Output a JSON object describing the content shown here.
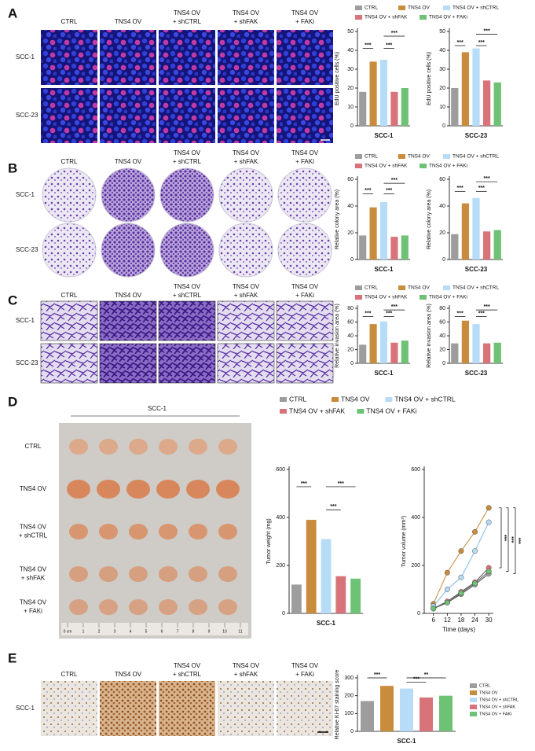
{
  "panels": {
    "A": {
      "label": "A",
      "columns": [
        [
          "CTRL"
        ],
        [
          "TNS4 OV"
        ],
        [
          "TNS4 OV",
          "+ shCTRL"
        ],
        [
          "TNS4 OV",
          "+ shFAK"
        ],
        [
          "TNS4 OV",
          "+ FAKi"
        ]
      ],
      "rows": [
        "SCC-1",
        "SCC-23"
      ]
    },
    "B": {
      "label": "B",
      "columns": [
        [
          "CTRL"
        ],
        [
          "TNS4 OV"
        ],
        [
          "TNS4 OV",
          "+ shCTRL"
        ],
        [
          "TNS4 OV",
          "+ shFAK"
        ],
        [
          "TNS4 OV",
          "+ FAKi"
        ]
      ],
      "rows": [
        "SCC-1",
        "SCC-23"
      ]
    },
    "C": {
      "label": "C",
      "columns": [
        [
          "CTRL"
        ],
        [
          "TNS4 OV"
        ],
        [
          "TNS4 OV",
          "+ shCTRL"
        ],
        [
          "TNS4 OV",
          "+ shFAK"
        ],
        [
          "TNS4 OV",
          "+ FAKi"
        ]
      ],
      "rows": [
        "SCC-1",
        "SCC-23"
      ]
    },
    "D": {
      "label": "D",
      "header": "SCC-1",
      "rows": [
        [
          "CTRL"
        ],
        [
          "TNS4 OV"
        ],
        [
          "TNS4 OV",
          "+ shCTRL"
        ],
        [
          "TNS4 OV",
          "+ shFAK"
        ],
        [
          "TNS4 OV",
          "+ FAKi"
        ]
      ],
      "ruler": [
        "0 cm",
        "1",
        "2",
        "3",
        "4",
        "5",
        "6",
        "7",
        "8",
        "9",
        "10",
        "11"
      ]
    },
    "E": {
      "label": "E",
      "columns": [
        [
          "CTRL"
        ],
        [
          "TNS4 OV"
        ],
        [
          "TNS4 OV",
          "+ shCTRL"
        ],
        [
          "TNS4 OV",
          "+ shFAK"
        ],
        [
          "TNS4 OV",
          "+ FAKi"
        ]
      ],
      "rows": [
        "SCC-1"
      ]
    }
  },
  "chart_data": [
    {
      "type": "bar",
      "y_label": "EdU positive cells (%)",
      "categories": [
        "SCC-1"
      ],
      "ylim": [
        0,
        50
      ],
      "yticks": [
        0,
        10,
        20,
        30,
        40,
        50
      ],
      "annotations": [
        "***",
        "***",
        "***"
      ],
      "series": [
        {
          "name": "CTRL",
          "color": "#9d9d9d",
          "values": [
            18
          ]
        },
        {
          "name": "TNS4 OV",
          "color": "#c98b3c",
          "values": [
            34
          ]
        },
        {
          "name": "TNS4 OV + shCTRL",
          "color": "#b6dcf7",
          "values": [
            35
          ]
        },
        {
          "name": "TNS4 OV + shFAK",
          "color": "#d9737a",
          "values": [
            18
          ]
        },
        {
          "name": "TNS4 OV + FAKi",
          "color": "#6dc274",
          "values": [
            20
          ]
        }
      ]
    },
    {
      "type": "bar",
      "y_label": "EdU positive cells (%)",
      "categories": [
        "SCC-23"
      ],
      "ylim": [
        0,
        50
      ],
      "yticks": [
        0,
        10,
        20,
        30,
        40,
        50
      ],
      "annotations": [
        "***",
        "***",
        "***"
      ],
      "series": [
        {
          "color": "#9d9d9d",
          "values": [
            20
          ]
        },
        {
          "color": "#c98b3c",
          "values": [
            39
          ]
        },
        {
          "color": "#b6dcf7",
          "values": [
            41
          ]
        },
        {
          "color": "#d9737a",
          "values": [
            24
          ]
        },
        {
          "color": "#6dc274",
          "values": [
            23
          ]
        }
      ]
    },
    {
      "type": "bar",
      "y_label": "Relative colony area (%)",
      "categories": [
        "SCC-1"
      ],
      "ylim": [
        0,
        60
      ],
      "yticks": [
        0,
        20,
        40,
        60
      ],
      "annotations": [
        "***",
        "***",
        "***"
      ],
      "series": [
        {
          "name": "CTRL",
          "color": "#9d9d9d",
          "values": [
            18
          ]
        },
        {
          "name": "TNS4 OV",
          "color": "#c98b3c",
          "values": [
            39
          ]
        },
        {
          "name": "TNS4 OV + shCTRL",
          "color": "#b6dcf7",
          "values": [
            43
          ]
        },
        {
          "name": "TNS4 OV + shFAK",
          "color": "#d9737a",
          "values": [
            17
          ]
        },
        {
          "name": "TNS4 OV + FAKi",
          "color": "#6dc274",
          "values": [
            18
          ]
        }
      ]
    },
    {
      "type": "bar",
      "y_label": "Relative colony area (%)",
      "categories": [
        "SCC-23"
      ],
      "ylim": [
        0,
        60
      ],
      "yticks": [
        0,
        20,
        40,
        60
      ],
      "annotations": [
        "***",
        "***",
        "***"
      ],
      "series": [
        {
          "color": "#9d9d9d",
          "values": [
            19
          ]
        },
        {
          "color": "#c98b3c",
          "values": [
            42
          ]
        },
        {
          "color": "#b6dcf7",
          "values": [
            46
          ]
        },
        {
          "color": "#d9737a",
          "values": [
            21
          ]
        },
        {
          "color": "#6dc274",
          "values": [
            22
          ]
        }
      ]
    },
    {
      "type": "bar",
      "y_label": "Relative invasion area (%)",
      "categories": [
        "SCC-1"
      ],
      "ylim": [
        0,
        80
      ],
      "yticks": [
        0,
        20,
        40,
        60,
        80
      ],
      "annotations": [
        "***",
        "***",
        "***"
      ],
      "series": [
        {
          "name": "CTRL",
          "color": "#9d9d9d",
          "values": [
            27
          ]
        },
        {
          "name": "TNS4 OV",
          "color": "#c98b3c",
          "values": [
            57
          ]
        },
        {
          "name": "TNS4 OV + shCTRL",
          "color": "#b6dcf7",
          "values": [
            61
          ]
        },
        {
          "name": "TNS4 OV + shFAK",
          "color": "#d9737a",
          "values": [
            30
          ]
        },
        {
          "name": "TNS4 OV + FAKi",
          "color": "#6dc274",
          "values": [
            33
          ]
        }
      ]
    },
    {
      "type": "bar",
      "y_label": "Relative invasion area (%)",
      "categories": [
        "SCC-23"
      ],
      "ylim": [
        0,
        80
      ],
      "yticks": [
        0,
        20,
        40,
        60,
        80
      ],
      "annotations": [
        "***",
        "***",
        "***"
      ],
      "series": [
        {
          "color": "#9d9d9d",
          "values": [
            29
          ]
        },
        {
          "color": "#c98b3c",
          "values": [
            62
          ]
        },
        {
          "color": "#b6dcf7",
          "values": [
            57
          ]
        },
        {
          "color": "#d9737a",
          "values": [
            29
          ]
        },
        {
          "color": "#6dc274",
          "values": [
            30
          ]
        }
      ]
    },
    {
      "type": "bar",
      "y_label": "Tumor weight (mg)",
      "categories": [
        "SCC-1"
      ],
      "ylim": [
        0,
        600
      ],
      "yticks": [
        0,
        200,
        400,
        600
      ],
      "annotations": [
        "***",
        "***",
        "***"
      ],
      "series": [
        {
          "name": "CTRL",
          "color": "#9d9d9d",
          "values": [
            120
          ]
        },
        {
          "name": "TNS4 OV",
          "color": "#c98b3c",
          "values": [
            390
          ]
        },
        {
          "name": "TNS4 OV + shCTRL",
          "color": "#b6dcf7",
          "values": [
            310
          ]
        },
        {
          "name": "TNS4 OV + shFAK",
          "color": "#d9737a",
          "values": [
            155
          ]
        },
        {
          "name": "TNS4 OV + FAKi",
          "color": "#6dc274",
          "values": [
            145
          ]
        }
      ]
    },
    {
      "type": "line",
      "y_label": "Tumor volume (mm³)",
      "x_label": "Time (days)",
      "x": [
        6,
        12,
        18,
        24,
        30
      ],
      "xlim": [
        2,
        32
      ],
      "xticks": [
        6,
        12,
        18,
        24,
        30
      ],
      "ylim": [
        0,
        600
      ],
      "yticks": [
        0,
        200,
        400,
        600
      ],
      "annotations": [
        "***",
        "***",
        "***"
      ],
      "series": [
        {
          "color": "#9d9d9d",
          "values": [
            20,
            45,
            80,
            120,
            165
          ]
        },
        {
          "color": "#c98b3c",
          "values": [
            40,
            170,
            260,
            340,
            440
          ]
        },
        {
          "color": "#b6dcf7",
          "values": [
            30,
            100,
            150,
            260,
            380
          ]
        },
        {
          "color": "#d9737a",
          "values": [
            20,
            50,
            90,
            130,
            190
          ]
        },
        {
          "color": "#6dc274",
          "values": [
            20,
            45,
            85,
            125,
            175
          ]
        }
      ]
    },
    {
      "type": "bar",
      "y_label": "Relative Ki-67 staining score",
      "categories": [
        "SCC-1"
      ],
      "ylim": [
        0,
        300
      ],
      "yticks": [
        0,
        100,
        200,
        300
      ],
      "annotations": [
        "***",
        "***",
        "**"
      ],
      "series": [
        {
          "name": "CTRL",
          "color": "#9d9d9d",
          "values": [
            170
          ]
        },
        {
          "name": "TNS4 OV",
          "color": "#c98b3c",
          "values": [
            255
          ]
        },
        {
          "name": "TNS4 OV + shCTRL",
          "color": "#b6dcf7",
          "values": [
            240
          ]
        },
        {
          "name": "TNS4 OV + shFAK",
          "color": "#d9737a",
          "values": [
            190
          ]
        },
        {
          "name": "TNS4 OV + FAKi",
          "color": "#6dc274",
          "values": [
            200
          ]
        }
      ]
    }
  ]
}
